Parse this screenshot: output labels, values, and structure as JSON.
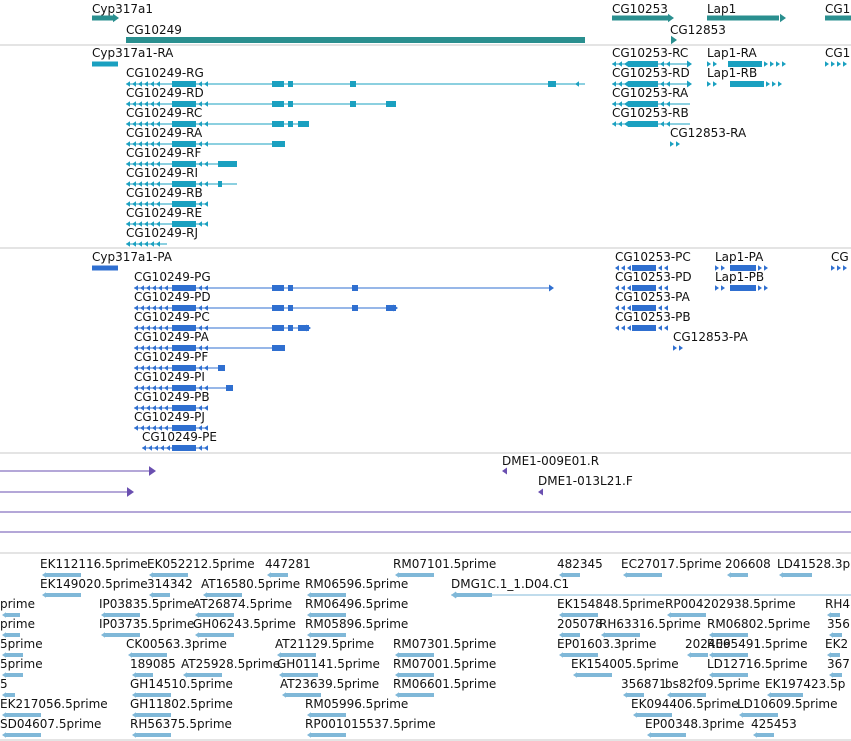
{
  "colors": {
    "gene": "#2a8f8f",
    "mrna": "#1aa0c0",
    "protein": "#2f6fd0",
    "clone": "#6a4fb0",
    "est": "#80b8d8",
    "divider": "#c8c8c8"
  },
  "tracks": {
    "gene": {
      "labels": [
        "Cyp317a1",
        "CG10249",
        "CG10253",
        "CG12853",
        "Lap1",
        "CG1"
      ]
    },
    "mrna": {
      "labels": [
        "Cyp317a1-RA",
        "CG10249-RG",
        "CG10249-RD",
        "CG10249-RC",
        "CG10249-RA",
        "CG10249-RF",
        "CG10249-RI",
        "CG10249-RB",
        "CG10249-RE",
        "CG10249-RJ",
        "CG10253-RC",
        "CG10253-RD",
        "CG10253-RA",
        "CG10253-RB",
        "CG12853-RA",
        "Lap1-RA",
        "Lap1-RB",
        "CG1"
      ]
    },
    "protein": {
      "labels": [
        "Cyp317a1-PA",
        "CG10249-PG",
        "CG10249-PD",
        "CG10249-PC",
        "CG10249-PA",
        "CG10249-PF",
        "CG10249-PI",
        "CG10249-PB",
        "CG10249-PJ",
        "CG10249-PE",
        "CG10253-PC",
        "CG10253-PD",
        "CG10253-PA",
        "CG10253-PB",
        "CG12853-PA",
        "Lap1-PA",
        "Lap1-PB",
        "CG"
      ]
    },
    "clone": {
      "labels": [
        "DME1-009E01.R",
        "DME1-013L21.F"
      ]
    },
    "est": {
      "labels": [
        "EK112116.5prime",
        "EK052212.5prime",
        "447281",
        "RM07101.5prime",
        "482345",
        "EC27017.5prime",
        "206608",
        "LD41528.3p",
        "EK149020.5prime",
        "314342",
        "AT16580.5prime",
        "RM06596.5prime",
        "DMG1C.1_1.D04.C1",
        "prime",
        "IP03835.5prime",
        "AT26874.5prime",
        "RM06496.5prime",
        "EK154848.5prime",
        "RP004202938.5prime",
        "RH4",
        "prime",
        "IP03735.5prime",
        "GH06243.5prime",
        "RM05896.5prime",
        "205078",
        "RH63316.5prime",
        "RM06802.5prime",
        "356",
        "5prime",
        "CK00563.3prime",
        "AT21129.5prime",
        "RM07301.5prime",
        "EP01603.3prime",
        "202409",
        "RE65491.5prime",
        "EK2",
        "5prime",
        "189085",
        "AT25928.5prime",
        "GH01141.5prime",
        "RM07001.5prime",
        "EK154005.5prime",
        "LD12716.5prime",
        "367",
        "5",
        "GH14510.5prime",
        "AT23639.5prime",
        "RM06601.5prime",
        "356871",
        "bs82f09.5prime",
        "EK197423.5p",
        "EK217056.5prime",
        "GH11802.5prime",
        "RM05996.5prime",
        "EK094406.5prime",
        "LD10609.5prime",
        "SD04607.5prime",
        "RH56375.5prime",
        "RP001015537.5prime",
        "EP00348.3prime",
        "425453"
      ]
    }
  }
}
